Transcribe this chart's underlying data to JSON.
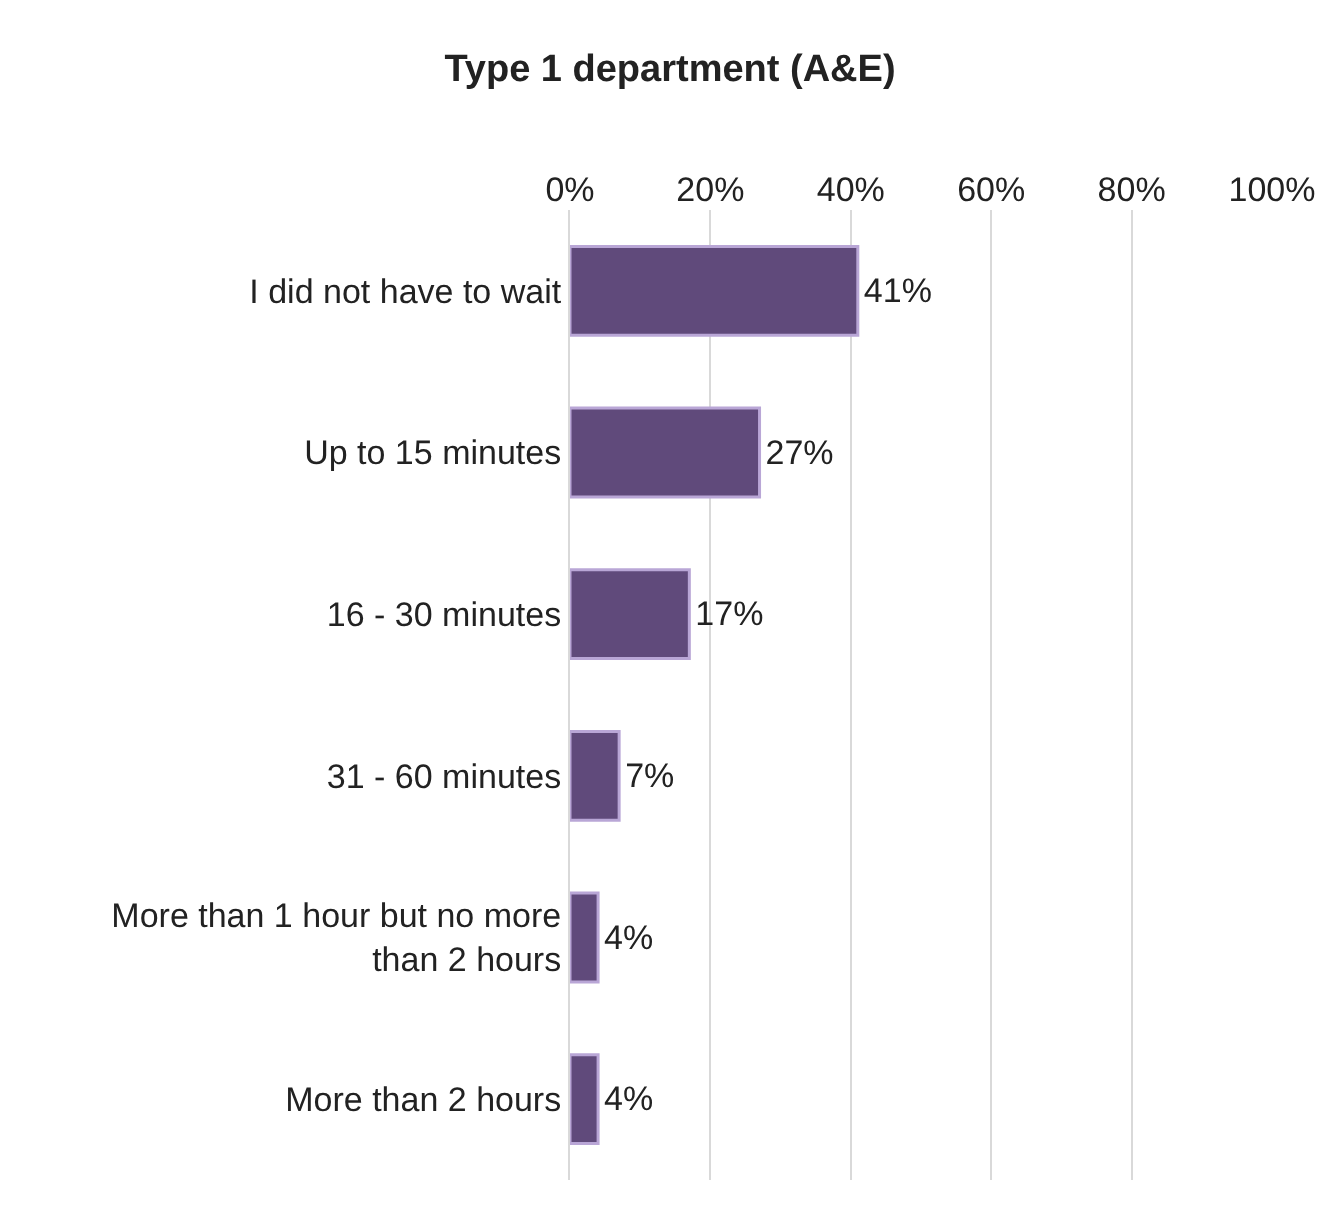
{
  "chart_data": {
    "type": "bar",
    "orientation": "horizontal",
    "title": "Type 1 department (A&E)",
    "categories": [
      "I did not have to wait",
      "Up to 15 minutes",
      "16 - 30 minutes",
      "31 - 60 minutes",
      "More than 1 hour but no more than 2 hours",
      "More than 2 hours"
    ],
    "values": [
      41,
      27,
      17,
      7,
      4,
      4
    ],
    "value_labels": [
      "41%",
      "27%",
      "17%",
      "7%",
      "4%",
      "4%"
    ],
    "color": "#604a7b",
    "xlim": [
      0,
      100
    ],
    "xticks": [
      {
        "value": 0,
        "label": "0%"
      },
      {
        "value": 20,
        "label": "20%"
      },
      {
        "value": 40,
        "label": "40%"
      },
      {
        "value": 60,
        "label": "60%"
      },
      {
        "value": 80,
        "label": "80%"
      },
      {
        "value": 100,
        "label": "100%"
      }
    ],
    "grid": "x",
    "legend": false
  }
}
